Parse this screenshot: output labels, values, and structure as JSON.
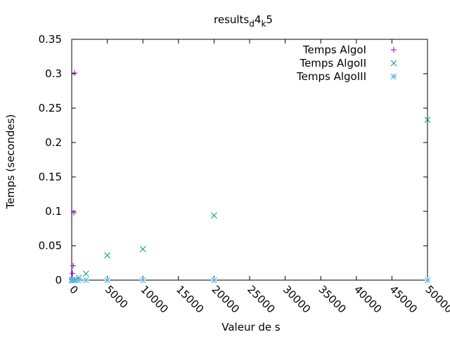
{
  "chart_data": {
    "type": "scatter",
    "title": {
      "main": "results",
      "sub1": "d",
      "mid": "4",
      "sub2": "k",
      "end": "5"
    },
    "xlabel": "Valeur de s",
    "ylabel": "Temps (secondes)",
    "xlim": [
      0,
      50000
    ],
    "ylim": [
      0,
      0.35
    ],
    "x_ticks": [
      0,
      5000,
      10000,
      15000,
      20000,
      25000,
      30000,
      35000,
      40000,
      45000,
      50000
    ],
    "x_tick_labels": [
      "0",
      "5000",
      "10000",
      "15000",
      "20000",
      "25000",
      "30000",
      "35000",
      "40000",
      "45000",
      "50000"
    ],
    "y_ticks": [
      0,
      0.05,
      0.1,
      0.15,
      0.2,
      0.25,
      0.3,
      0.35
    ],
    "y_tick_labels": [
      "0",
      "0.05",
      "0.1",
      "0.15",
      "0.2",
      "0.25",
      "0.3",
      "0.35"
    ],
    "grid": false,
    "legend_position": "top-right",
    "series": [
      {
        "name": "Temps AlgoI",
        "marker": "plus",
        "color": "#9400d3",
        "points": [
          [
            10,
            0.0001
          ],
          [
            20,
            0.0004
          ],
          [
            50,
            0.0021
          ],
          [
            100,
            0.0099
          ],
          [
            200,
            0.021
          ],
          [
            300,
            0.098
          ],
          [
            400,
            0.301
          ]
        ]
      },
      {
        "name": "Temps AlgoII",
        "marker": "cross",
        "color": "#009e73",
        "points": [
          [
            10,
            0.0
          ],
          [
            50,
            0.0
          ],
          [
            100,
            0.0001
          ],
          [
            200,
            0.0002
          ],
          [
            500,
            0.0005
          ],
          [
            1000,
            0.0035
          ],
          [
            2000,
            0.0095
          ],
          [
            5000,
            0.036
          ],
          [
            10000,
            0.045
          ],
          [
            20000,
            0.094
          ],
          [
            50000,
            0.233
          ]
        ]
      },
      {
        "name": "Temps AlgoIII",
        "marker": "star",
        "color": "#56b4e9",
        "points": [
          [
            10,
            0.0
          ],
          [
            50,
            0.0
          ],
          [
            100,
            0.0
          ],
          [
            200,
            0.0
          ],
          [
            500,
            0.0
          ],
          [
            1000,
            0.0
          ],
          [
            2000,
            0.0
          ],
          [
            5000,
            0.0
          ],
          [
            10000,
            0.0
          ],
          [
            20000,
            0.0
          ],
          [
            50000,
            0.0
          ]
        ]
      }
    ]
  }
}
